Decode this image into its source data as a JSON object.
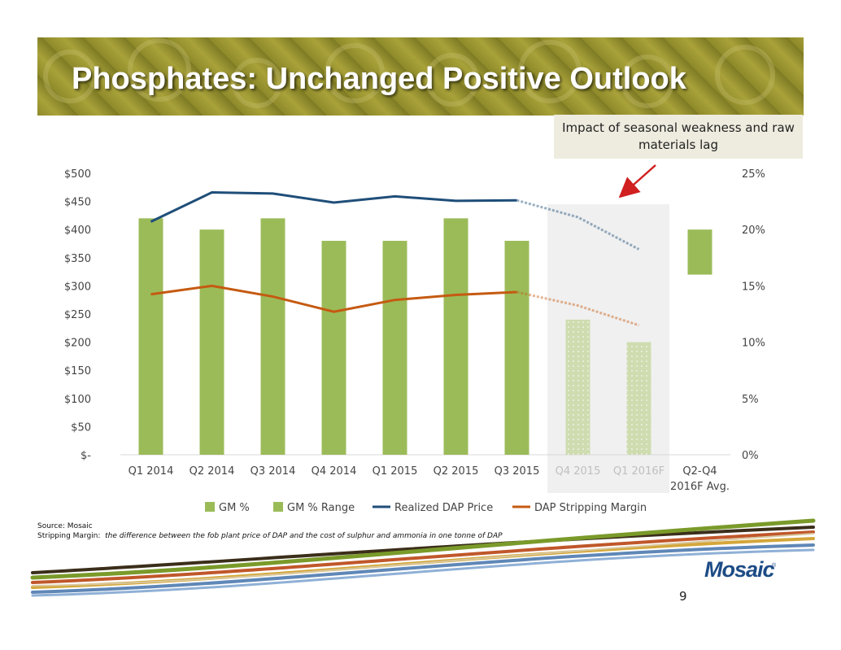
{
  "slide": {
    "title": "Phosphates: Unchanged Positive Outlook",
    "callout": "Impact of seasonal weakness and raw materials lag",
    "source": "Source: Mosaic",
    "definition_label": "Stripping Margin:",
    "definition_text": "the difference between the fob plant price of DAP and the cost of sulphur and ammonia in one tonne of DAP",
    "page_number": "9",
    "logo_text": "Mosaic",
    "logo_mark": "®",
    "colors": {
      "banner": "#8e8a2a",
      "title_text": "#ffffff",
      "callout_bg": "#eeecdf",
      "logo": "#1d4c86"
    }
  },
  "chart_data": {
    "type": "bar",
    "categories": [
      "Q1 2014",
      "Q2 2014",
      "Q3 2014",
      "Q4 2014",
      "Q1 2015",
      "Q2 2015",
      "Q3 2015",
      "Q4 2015",
      "Q1 2016F",
      "Q2-Q4 2016F Avg."
    ],
    "category_lines": [
      [
        "Q1 2014"
      ],
      [
        "Q2 2014"
      ],
      [
        "Q3 2014"
      ],
      [
        "Q4 2014"
      ],
      [
        "Q1 2015"
      ],
      [
        "Q2 2015"
      ],
      [
        "Q3 2015"
      ],
      [
        "Q4 2015"
      ],
      [
        "Q1 2016F"
      ],
      [
        "Q2-Q4",
        "2016F Avg."
      ]
    ],
    "forecast_categories": [
      "Q4 2015",
      "Q1 2016F"
    ],
    "series": [
      {
        "name": "GM %",
        "axis": "right",
        "kind": "bar",
        "color": "#9bbb59",
        "values": [
          21,
          20,
          21,
          19,
          19,
          21,
          19,
          12,
          10,
          null
        ]
      },
      {
        "name": "GM % Range",
        "axis": "right",
        "kind": "range-bar",
        "color": "#9bbb59",
        "low": [
          null,
          null,
          null,
          null,
          null,
          null,
          null,
          null,
          null,
          16
        ],
        "high": [
          null,
          null,
          null,
          null,
          null,
          null,
          null,
          null,
          null,
          20
        ]
      },
      {
        "name": "Realized DAP Price",
        "axis": "left",
        "kind": "line",
        "color": "#1f4e79",
        "values": [
          414,
          466,
          464,
          448,
          459,
          451,
          452,
          422,
          365,
          null
        ]
      },
      {
        "name": "DAP Stripping Margin",
        "axis": "left",
        "kind": "line",
        "color": "#c55a11",
        "values": [
          285,
          300,
          281,
          254,
          275,
          284,
          289,
          265,
          230,
          null
        ]
      }
    ],
    "y_left": {
      "min": 0,
      "max": 500,
      "step": 50,
      "tick_labels": [
        "$-",
        "$50",
        "$100",
        "$150",
        "$200",
        "$250",
        "$300",
        "$350",
        "$400",
        "$450",
        "$500"
      ]
    },
    "y_right": {
      "min": 0,
      "max": 25,
      "step": 5,
      "tick_labels": [
        "0%",
        "5%",
        "10%",
        "15%",
        "20%",
        "25%"
      ]
    },
    "legend": {
      "position": "bottom",
      "entries": [
        {
          "label": "GM %",
          "type": "box",
          "color": "#9bbb59"
        },
        {
          "label": "GM % Range",
          "type": "box",
          "color": "#9bbb59"
        },
        {
          "label": "Realized DAP Price",
          "type": "line",
          "color": "#1f4e79"
        },
        {
          "label": "DAP Stripping Margin",
          "type": "line",
          "color": "#c55a11"
        }
      ]
    },
    "grid": false,
    "forecast_highlight_color": "#f0f0f0"
  }
}
